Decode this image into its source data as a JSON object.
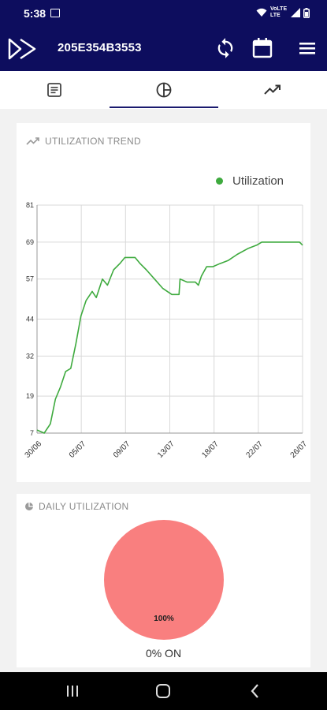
{
  "status_bar": {
    "time": "5:38",
    "indicators": "VoLTE LTE"
  },
  "app_bar": {
    "title": "205E354B3553"
  },
  "tabs": [
    {
      "name": "details-tab",
      "icon": "document-icon"
    },
    {
      "name": "utilization-tab",
      "icon": "pie-chart-icon",
      "selected": true
    },
    {
      "name": "trend-tab",
      "icon": "trending-up-icon"
    }
  ],
  "trend_card": {
    "title": "UTILIZATION TREND"
  },
  "daily_card": {
    "title": "DAILY UTILIZATION",
    "caption": "0% ON"
  },
  "colors": {
    "primary": "#0d0d5e",
    "line": "#3eaa3e",
    "pie": "#f97f7f"
  },
  "chart_data": [
    {
      "type": "line",
      "title": "",
      "xlabel": "",
      "ylabel": "",
      "x_ticks": [
        "30/06",
        "05/07",
        "09/07",
        "13/07",
        "18/07",
        "22/07",
        "26/07"
      ],
      "y_ticks": [
        7,
        19,
        32,
        44,
        57,
        69,
        81
      ],
      "ylim": [
        7,
        81
      ],
      "x_index_range": [
        0,
        26
      ],
      "legend": "top-right",
      "grid": true,
      "series": [
        {
          "name": "Utilization",
          "points": [
            [
              0,
              8
            ],
            [
              0.7,
              7
            ],
            [
              1.3,
              10
            ],
            [
              1.8,
              18
            ],
            [
              2.3,
              22
            ],
            [
              2.8,
              27
            ],
            [
              3.3,
              28
            ],
            [
              3.8,
              36
            ],
            [
              4.3,
              45
            ],
            [
              4.8,
              50
            ],
            [
              5.4,
              53
            ],
            [
              5.8,
              51
            ],
            [
              6.4,
              57
            ],
            [
              6.9,
              55
            ],
            [
              7.5,
              60
            ],
            [
              8.1,
              62
            ],
            [
              8.6,
              64
            ],
            [
              9.6,
              64
            ],
            [
              10.1,
              62
            ],
            [
              10.7,
              60
            ],
            [
              11.5,
              57
            ],
            [
              12.3,
              54
            ],
            [
              13.2,
              52
            ],
            [
              13.9,
              52
            ],
            [
              14,
              57
            ],
            [
              14.7,
              56
            ],
            [
              15.5,
              56
            ],
            [
              15.8,
              55
            ],
            [
              16.1,
              58
            ],
            [
              16.6,
              61
            ],
            [
              17.2,
              61
            ],
            [
              17.9,
              62
            ],
            [
              18.7,
              63
            ],
            [
              19.6,
              65
            ],
            [
              20.7,
              67
            ],
            [
              21.5,
              68
            ],
            [
              22,
              69
            ],
            [
              25,
              69
            ],
            [
              25.7,
              69
            ],
            [
              26,
              68
            ]
          ]
        }
      ]
    },
    {
      "type": "pie",
      "slices": [
        {
          "label": "100%",
          "value": 100
        }
      ]
    }
  ],
  "nav": {
    "recents": "recents",
    "home": "home",
    "back": "back"
  }
}
